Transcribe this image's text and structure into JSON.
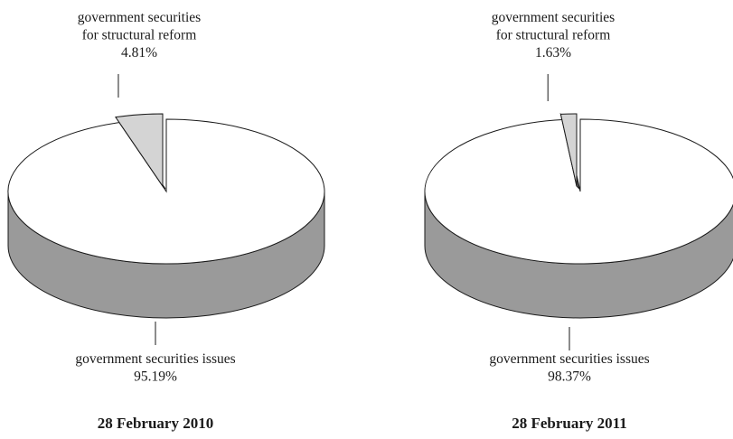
{
  "chart_data": [
    {
      "type": "pie",
      "title": "28 February 2010",
      "slices": [
        {
          "label_lines": [
            "government securities",
            "for structural reform"
          ],
          "value": 4.81,
          "value_label": "4.81%",
          "exploded": true,
          "color": "#d4d4d4"
        },
        {
          "label_lines": [
            "government securities issues"
          ],
          "value": 95.19,
          "value_label": "95.19%",
          "exploded": false,
          "color": "#ffffff"
        }
      ],
      "side_color": "#9a9a9a",
      "edge_color": "#1a1a1a"
    },
    {
      "type": "pie",
      "title": "28 February 2011",
      "slices": [
        {
          "label_lines": [
            "government securities",
            "for structural reform"
          ],
          "value": 1.63,
          "value_label": "1.63%",
          "exploded": true,
          "color": "#d4d4d4"
        },
        {
          "label_lines": [
            "government securities issues"
          ],
          "value": 98.37,
          "value_label": "98.37%",
          "exploded": false,
          "color": "#ffffff"
        }
      ],
      "side_color": "#9a9a9a",
      "edge_color": "#1a1a1a"
    }
  ]
}
